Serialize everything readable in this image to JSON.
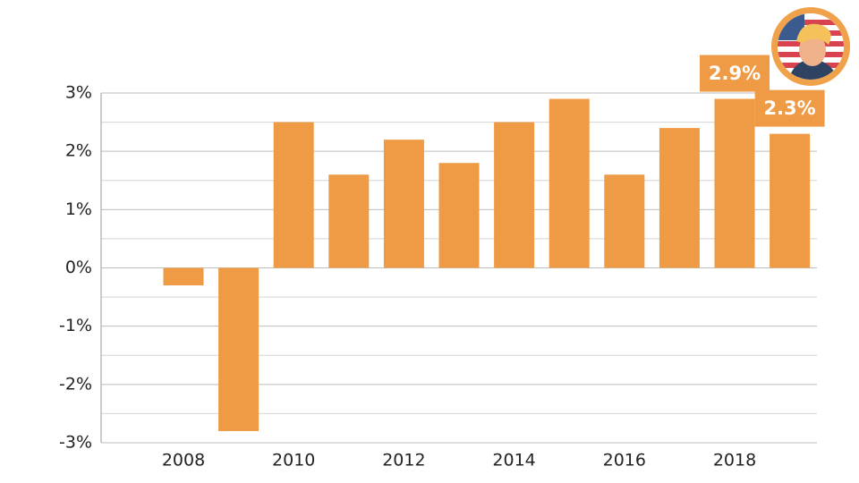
{
  "chart_data": {
    "type": "bar",
    "categories": [
      "2008",
      null,
      "2010",
      null,
      "2012",
      null,
      "2014",
      null,
      "2016",
      null,
      "2018",
      null
    ],
    "values": [
      -0.3,
      -2.8,
      2.5,
      1.6,
      2.2,
      1.8,
      2.5,
      2.9,
      1.6,
      2.4,
      2.9,
      2.3
    ],
    "value_labels": [
      null,
      null,
      null,
      null,
      null,
      null,
      null,
      null,
      null,
      null,
      "2.9%",
      "2.3%"
    ],
    "color": "#ef9a45",
    "ylim": [
      -3,
      3
    ],
    "yticks": [
      {
        "value": 3,
        "label": "3%"
      },
      {
        "value": 2,
        "label": "2%"
      },
      {
        "value": 1,
        "label": "1%"
      },
      {
        "value": 0,
        "label": "0%"
      },
      {
        "value": -1,
        "label": "-1%"
      },
      {
        "value": -2,
        "label": "-2%"
      },
      {
        "value": -3,
        "label": "-3%"
      }
    ],
    "minor_yticks": [
      2.5,
      1.5,
      0.5,
      -0.5,
      -1.5,
      -2.5
    ],
    "grid": true
  }
}
